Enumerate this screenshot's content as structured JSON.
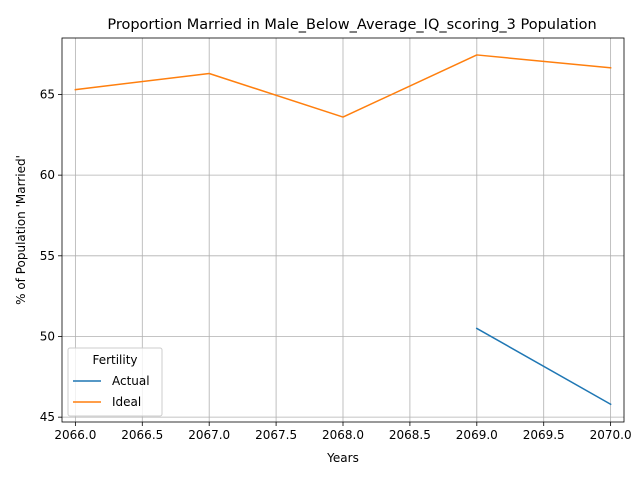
{
  "chart_data": {
    "type": "line",
    "title": "Proportion Married in Male_Below_Average_IQ_scoring_3 Population",
    "xlabel": "Years",
    "ylabel": "% of Population 'Married'",
    "xlim": [
      2065.9,
      2070.1
    ],
    "ylim": [
      44.7,
      68.5
    ],
    "xticks": [
      "2066.0",
      "2066.5",
      "2067.0",
      "2067.5",
      "2068.0",
      "2068.5",
      "2069.0",
      "2069.5",
      "2070.0"
    ],
    "yticks": [
      "45",
      "50",
      "55",
      "60",
      "65"
    ],
    "grid": true,
    "legend": {
      "title": "Fertility",
      "placement": "lower-left"
    },
    "series": [
      {
        "name": "Actual",
        "color": "#1f77b4",
        "x": [
          2069,
          2070
        ],
        "y": [
          50.5,
          45.8
        ]
      },
      {
        "name": "Ideal",
        "color": "#ff7f0e",
        "x": [
          2066,
          2067,
          2068,
          2069,
          2070
        ],
        "y": [
          65.3,
          66.3,
          63.6,
          67.45,
          66.65
        ]
      }
    ]
  }
}
